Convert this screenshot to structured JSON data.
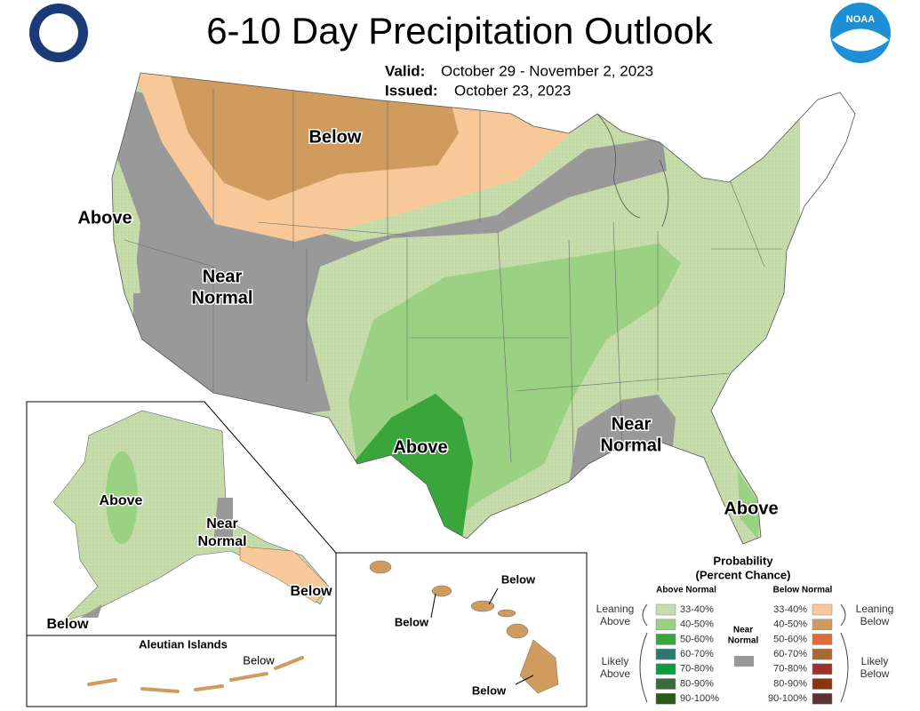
{
  "header": {
    "title": "6-10 Day Precipitation Outlook",
    "valid_label": "Valid:",
    "valid": "October 29 - November 2, 2023",
    "issued_label": "Issued:",
    "issued": "October 23, 2023",
    "noaa_logo": "NOAA"
  },
  "conus_labels": [
    {
      "lines": [
        "Below"
      ]
    },
    {
      "lines": [
        "Above"
      ]
    },
    {
      "lines": [
        "Near",
        "Normal"
      ]
    },
    {
      "lines": [
        "Above"
      ]
    },
    {
      "lines": [
        "Near",
        "Normal"
      ]
    },
    {
      "lines": [
        "Above"
      ]
    }
  ],
  "alaska_labels": [
    {
      "lines": [
        "Above"
      ]
    },
    {
      "lines": [
        "Near",
        "Normal"
      ]
    },
    {
      "lines": [
        "Below"
      ]
    },
    {
      "lines": [
        "Below"
      ]
    }
  ],
  "aleutians": {
    "title": "Aleutian Islands",
    "label": "Below"
  },
  "hawaii_labels": [
    "Below",
    "Below",
    "Below"
  ],
  "legend": {
    "title": [
      "Probability",
      "(Percent Chance)"
    ],
    "above_header": "Above Normal",
    "below_header": "Below Normal",
    "near": [
      "Near",
      "Normal"
    ],
    "near_color": "#999999",
    "leaning_above": [
      "Leaning",
      "Above"
    ],
    "likely_above": [
      "Likely",
      "Above"
    ],
    "leaning_below": [
      "Leaning",
      "Below"
    ],
    "likely_below": [
      "Likely",
      "Below"
    ],
    "above_bins": [
      {
        "label": "33-40%",
        "color": "#c6dcaa"
      },
      {
        "label": "40-50%",
        "color": "#9bd182"
      },
      {
        "label": "50-60%",
        "color": "#3aa53a"
      },
      {
        "label": "60-70%",
        "color": "#2a7a72"
      },
      {
        "label": "70-80%",
        "color": "#0c9c40"
      },
      {
        "label": "80-90%",
        "color": "#3c6a3c"
      },
      {
        "label": "90-100%",
        "color": "#2a5a16"
      }
    ],
    "below_bins": [
      {
        "label": "33-40%",
        "color": "#f9c898"
      },
      {
        "label": "40-50%",
        "color": "#cf9c5e"
      },
      {
        "label": "50-60%",
        "color": "#e06a3a"
      },
      {
        "label": "60-70%",
        "color": "#a86a30"
      },
      {
        "label": "70-80%",
        "color": "#9e3030"
      },
      {
        "label": "80-90%",
        "color": "#8a3410"
      },
      {
        "label": "90-100%",
        "color": "#5a3434"
      }
    ]
  }
}
